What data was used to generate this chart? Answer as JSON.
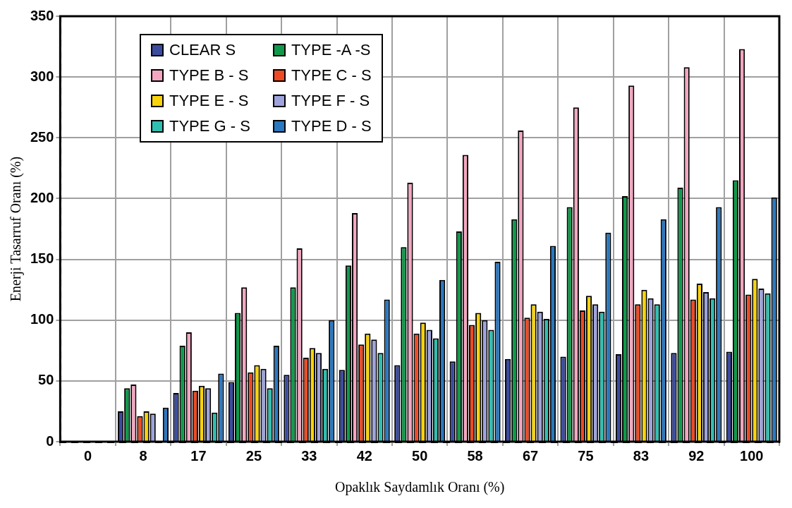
{
  "chart_data": {
    "type": "bar",
    "xlabel": "Opaklık Saydamlık Oranı (%)",
    "ylabel": "Enerji Tasarruf Oranı (%)",
    "categories": [
      "0",
      "8",
      "17",
      "25",
      "33",
      "42",
      "50",
      "58",
      "67",
      "75",
      "83",
      "92",
      "100"
    ],
    "series": [
      {
        "name": "CLEAR S",
        "color": "#3b4ba0",
        "values": [
          0,
          25,
          40,
          49,
          55,
          59,
          63,
          66,
          68,
          70,
          72,
          73,
          74
        ]
      },
      {
        "name": "TYPE -A -S",
        "color": "#0e9a4a",
        "values": [
          0,
          44,
          79,
          106,
          127,
          145,
          160,
          173,
          183,
          193,
          202,
          209,
          215
        ]
      },
      {
        "name": "TYPE B - S",
        "color": "#f4a6c0",
        "values": [
          0,
          47,
          90,
          127,
          159,
          188,
          213,
          236,
          256,
          275,
          293,
          308,
          323
        ]
      },
      {
        "name": "TYPE C - S",
        "color": "#ee4a24",
        "values": [
          0,
          21,
          42,
          57,
          69,
          80,
          89,
          96,
          102,
          108,
          113,
          117,
          121
        ]
      },
      {
        "name": "TYPE E - S",
        "color": "#f8d20a",
        "values": [
          0,
          25,
          46,
          63,
          77,
          89,
          98,
          106,
          113,
          120,
          125,
          130,
          134
        ]
      },
      {
        "name": "TYPE F - S",
        "color": "#9ea3dc",
        "values": [
          0,
          23,
          44,
          60,
          73,
          84,
          92,
          100,
          107,
          113,
          118,
          123,
          126
        ]
      },
      {
        "name": "TYPE G - S",
        "color": "#2fbfb0",
        "values": [
          0,
          0,
          24,
          44,
          60,
          73,
          85,
          92,
          101,
          107,
          113,
          118,
          122
        ]
      },
      {
        "name": "TYPE D - S",
        "color": "#2a78c0",
        "values": [
          0,
          28,
          56,
          79,
          100,
          117,
          133,
          148,
          161,
          172,
          183,
          193,
          201
        ]
      }
    ],
    "ylim": [
      0,
      350
    ],
    "yticks": [
      0,
      50,
      100,
      150,
      200,
      250,
      300,
      350
    ],
    "grid": true,
    "legend": "top left"
  }
}
